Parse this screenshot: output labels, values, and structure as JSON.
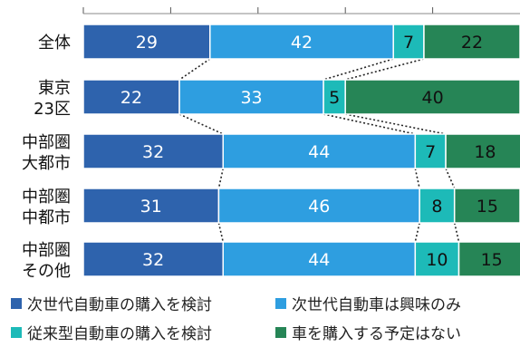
{
  "chart_data": {
    "type": "bar",
    "orientation": "horizontal",
    "stacked": true,
    "percent": true,
    "categories": [
      [
        "全体"
      ],
      [
        "東京",
        "23区"
      ],
      [
        "中部圏",
        "大都市"
      ],
      [
        "中部圏",
        "中都市"
      ],
      [
        "中部圏",
        "その他"
      ]
    ],
    "series": [
      {
        "name": "次世代自動車の購入を検討",
        "color": "#2e63ad",
        "values": [
          29,
          22,
          32,
          31,
          32
        ]
      },
      {
        "name": "次世代自動車は興味のみ",
        "color": "#2e9ee0",
        "values": [
          42,
          33,
          44,
          46,
          44
        ]
      },
      {
        "name": "従来型自動車の購入を検討",
        "color": "#1dbab8",
        "values": [
          7,
          5,
          7,
          8,
          10
        ]
      },
      {
        "name": "車を購入する予定はない",
        "color": "#268556",
        "values": [
          22,
          40,
          18,
          15,
          15
        ]
      }
    ],
    "xlim": [
      0,
      100
    ],
    "legend_position": "bottom",
    "title": "",
    "xlabel": "",
    "ylabel": ""
  }
}
